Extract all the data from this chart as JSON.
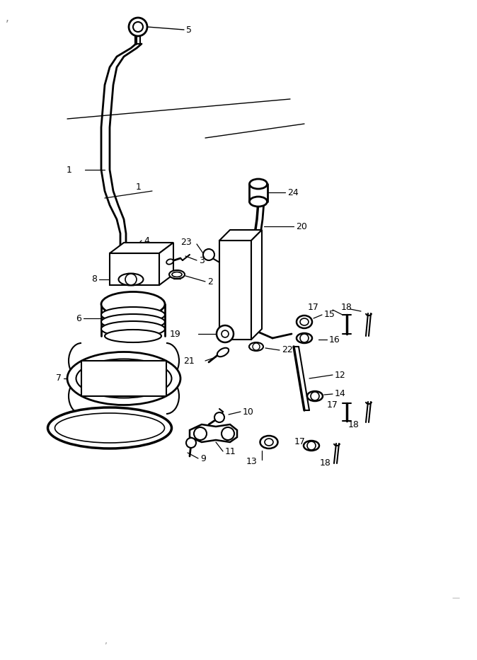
{
  "bg_color": "#ffffff",
  "line_color": "#000000",
  "fig_width": 6.74,
  "fig_height": 9.33,
  "dpi": 100
}
